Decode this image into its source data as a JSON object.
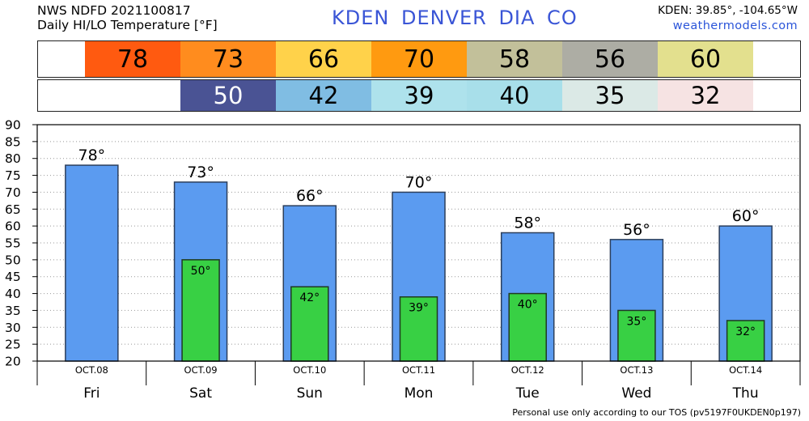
{
  "header": {
    "line1": "NWS NDFD 2021100817",
    "line2": "Daily HI/LO Temperature [°F]",
    "station": "KDEN  DENVER DIA    CO",
    "coords": "KDEN: 39.85°, -104.65°W",
    "site": "weathermodels.com"
  },
  "footer": "Personal use only according to our TOS (pv5197F0UKDEN0p197)",
  "hi_strip": [
    {
      "value": "78",
      "color": "#ff5a10"
    },
    {
      "value": "73",
      "color": "#ff8c1e"
    },
    {
      "value": "66",
      "color": "#ffd24a"
    },
    {
      "value": "70",
      "color": "#ff9a10"
    },
    {
      "value": "58",
      "color": "#c2c09a"
    },
    {
      "value": "56",
      "color": "#adada4"
    },
    {
      "value": "60",
      "color": "#e3e08e"
    }
  ],
  "lo_strip": [
    {
      "value": "",
      "color": "#ffffff"
    },
    {
      "value": "50",
      "color": "#4a5394",
      "text_color": "#ffffff"
    },
    {
      "value": "42",
      "color": "#80bde3"
    },
    {
      "value": "39",
      "color": "#aee2ec"
    },
    {
      "value": "40",
      "color": "#a8dfea"
    },
    {
      "value": "35",
      "color": "#dbe9e6"
    },
    {
      "value": "32",
      "color": "#f6e3e3"
    }
  ],
  "chart_data": {
    "type": "bar",
    "categories": [
      "Fri",
      "Sat",
      "Sun",
      "Mon",
      "Tue",
      "Wed",
      "Thu"
    ],
    "dates": [
      "OCT.08",
      "OCT.09",
      "OCT.10",
      "OCT.11",
      "OCT.12",
      "OCT.13",
      "OCT.14"
    ],
    "series": [
      {
        "values": [
          78,
          73,
          66,
          70,
          58,
          56,
          60
        ],
        "color": "#5b9bf0"
      },
      {
        "values": [
          null,
          50,
          42,
          39,
          40,
          35,
          32
        ],
        "color": "#38d044"
      }
    ],
    "yticks": [
      20,
      25,
      30,
      35,
      40,
      45,
      50,
      55,
      60,
      65,
      70,
      75,
      80,
      85,
      90
    ],
    "ylim": [
      20,
      90
    ],
    "grid": true,
    "degree_suffix": "°"
  }
}
